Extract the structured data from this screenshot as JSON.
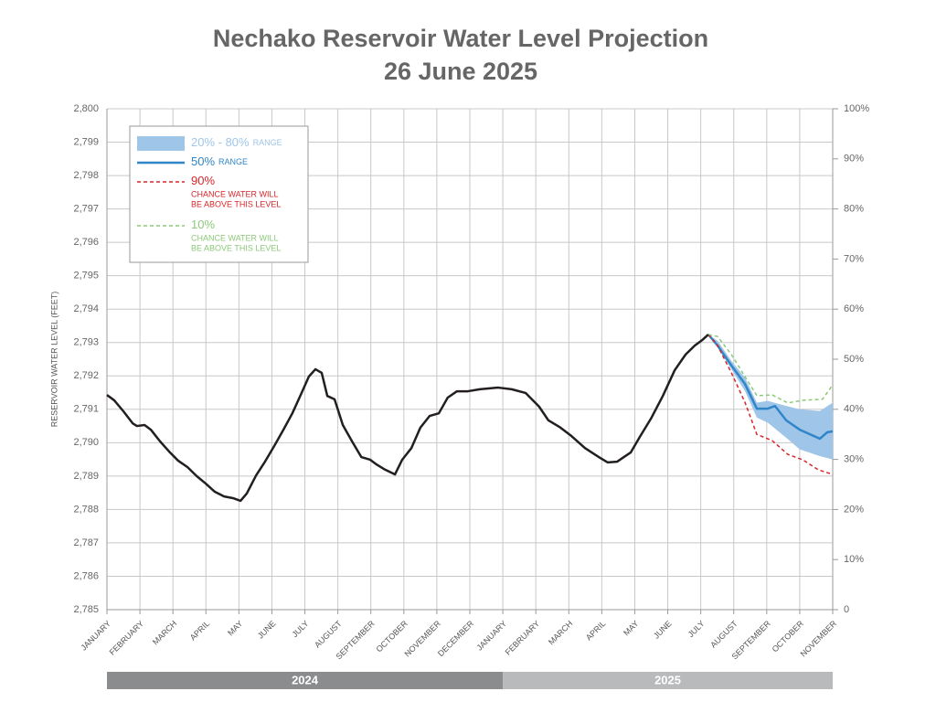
{
  "chart_data": {
    "type": "line",
    "title": "Nechako Reservoir Water Level Projection",
    "subtitle": "26 June 2025",
    "y_label": "RESERVOIR WATER LEVEL (FEET)",
    "categories": [
      "JANUARY",
      "FEBRUARY",
      "MARCH",
      "APRIL",
      "MAY",
      "JUNE",
      "JULY",
      "AUGUST",
      "SEPTEMBER",
      "OCTOBER",
      "NOVEMBER",
      "DECEMBER",
      "JANUARY",
      "FEBRUARY",
      "MARCH",
      "APRIL",
      "MAY",
      "JUNE",
      "JULY",
      "AUGUST",
      "SEPTEMBER",
      "OCTOBER",
      "NOVEMBER"
    ],
    "periods": [
      {
        "label": "2024",
        "start": 0,
        "end": 12,
        "color": "#8a8c8e"
      },
      {
        "label": "2025",
        "start": 12,
        "end": 22,
        "color": "#b8babc"
      }
    ],
    "ylim": [
      2785,
      2800
    ],
    "yticks": [
      {
        "value": 2785,
        "label": "2,785"
      },
      {
        "value": 2786,
        "label": "2,786"
      },
      {
        "value": 2787,
        "label": "2,787"
      },
      {
        "value": 2788,
        "label": "2,788"
      },
      {
        "value": 2789,
        "label": "2,789"
      },
      {
        "value": 2790,
        "label": "2,790"
      },
      {
        "value": 2791,
        "label": "2,791"
      },
      {
        "value": 2792,
        "label": "2,792"
      },
      {
        "value": 2793,
        "label": "2,793"
      },
      {
        "value": 2794,
        "label": "2,794"
      },
      {
        "value": 2795,
        "label": "2,795"
      },
      {
        "value": 2796,
        "label": "2,796"
      },
      {
        "value": 2797,
        "label": "2,797"
      },
      {
        "value": 2798,
        "label": "2,798"
      },
      {
        "value": 2799,
        "label": "2,799"
      },
      {
        "value": 2800,
        "label": "2,800"
      }
    ],
    "y2lim": [
      0,
      100
    ],
    "y2ticks": [
      0,
      {
        "value": 10,
        "label": "10%"
      },
      {
        "value": 20,
        "label": "20%"
      },
      {
        "value": 30,
        "label": "30%"
      },
      {
        "value": 40,
        "label": "40%"
      },
      {
        "value": 50,
        "label": "50%"
      },
      {
        "value": 60,
        "label": "60%"
      },
      {
        "value": 70,
        "label": "70%"
      },
      {
        "value": 80,
        "label": "80%"
      },
      {
        "value": 90,
        "label": "90%"
      },
      {
        "value": 100,
        "label": "100%"
      }
    ],
    "grid": true,
    "legend": "upper left",
    "series": [
      {
        "name": "20% - 80%",
        "legend_note": [
          "RANGE"
        ],
        "kind": "band",
        "color": "#9fc5e8",
        "x": [
          18.23,
          18.51,
          18.93,
          19.34,
          19.7,
          20.03,
          20.59,
          21.0,
          21.61,
          22.0
        ],
        "lower": [
          2793.24,
          2792.85,
          2792.2,
          2791.55,
          2790.75,
          2790.6,
          2790.15,
          2789.8,
          2789.6,
          2789.5
        ],
        "upper": [
          2793.24,
          2793.05,
          2792.45,
          2791.95,
          2791.2,
          2791.25,
          2791.1,
          2791.0,
          2790.95,
          2791.2
        ]
      },
      {
        "name": "50%",
        "legend_note": [
          "RANGE"
        ],
        "kind": "solid",
        "color": "#2f86c8",
        "x": [
          18.23,
          18.51,
          18.93,
          19.34,
          19.7,
          20.03,
          20.25,
          20.59,
          21.0,
          21.61,
          21.83,
          22.0
        ],
        "values": [
          2793.24,
          2792.91,
          2792.31,
          2791.76,
          2791.02,
          2791.02,
          2791.1,
          2790.67,
          2790.39,
          2790.12,
          2790.31,
          2790.34
        ]
      },
      {
        "name": "90%",
        "legend_note": [
          "CHANCE WATER WILL",
          "BE ABOVE THIS LEVEL"
        ],
        "kind": "dashed",
        "color": "#d9262a",
        "x": [
          18.23,
          18.51,
          18.93,
          19.34,
          19.7,
          20.17,
          20.64,
          21.09,
          21.56,
          22.0
        ],
        "values": [
          2793.24,
          2792.91,
          2792.09,
          2791.21,
          2790.25,
          2790.06,
          2789.65,
          2789.49,
          2789.19,
          2789.05
        ]
      },
      {
        "name": "10%",
        "legend_note": [
          "CHANCE WATER WILL",
          "BE ABOVE THIS LEVEL"
        ],
        "kind": "dashed",
        "color": "#8cc97a",
        "x": [
          18.23,
          18.51,
          18.93,
          19.34,
          19.7,
          20.17,
          20.64,
          21.09,
          21.69,
          22.0
        ],
        "values": [
          2793.24,
          2793.18,
          2792.64,
          2791.98,
          2791.41,
          2791.43,
          2791.19,
          2791.27,
          2791.3,
          2791.73
        ]
      },
      {
        "kind": "solid",
        "color": "#231f20",
        "x": [
          0,
          0.22,
          0.5,
          0.78,
          0.91,
          1.14,
          1.33,
          1.61,
          1.88,
          2.16,
          2.44,
          2.72,
          2.99,
          3.27,
          3.55,
          3.82,
          4.05,
          4.24,
          4.52,
          4.79,
          5.07,
          5.35,
          5.62,
          5.9,
          6.12,
          6.32,
          6.51,
          6.68,
          6.9,
          7.15,
          7.43,
          7.71,
          7.98,
          8.17,
          8.4,
          8.73,
          8.95,
          9.23,
          9.5,
          9.78,
          10.06,
          10.33,
          10.61,
          10.94,
          11.3,
          11.86,
          12.27,
          12.69,
          13.1,
          13.38,
          13.72,
          14.08,
          14.49,
          14.91,
          15.18,
          15.46,
          15.88,
          16.15,
          16.49,
          16.85,
          17.21,
          17.54,
          17.82,
          18.04,
          18.23
        ],
        "values": [
          2791.43,
          2791.27,
          2790.94,
          2790.58,
          2790.5,
          2790.53,
          2790.39,
          2790.04,
          2789.74,
          2789.46,
          2789.27,
          2789.0,
          2788.78,
          2788.53,
          2788.39,
          2788.34,
          2788.26,
          2788.48,
          2789.02,
          2789.43,
          2789.9,
          2790.39,
          2790.88,
          2791.49,
          2791.98,
          2792.2,
          2792.09,
          2791.4,
          2791.3,
          2790.53,
          2790.04,
          2789.57,
          2789.49,
          2789.35,
          2789.21,
          2789.05,
          2789.49,
          2789.84,
          2790.45,
          2790.8,
          2790.88,
          2791.35,
          2791.54,
          2791.54,
          2791.6,
          2791.65,
          2791.6,
          2791.49,
          2791.08,
          2790.67,
          2790.47,
          2790.2,
          2789.84,
          2789.57,
          2789.41,
          2789.43,
          2789.71,
          2790.17,
          2790.72,
          2791.4,
          2792.17,
          2792.64,
          2792.91,
          2793.07,
          2793.24
        ]
      }
    ]
  }
}
